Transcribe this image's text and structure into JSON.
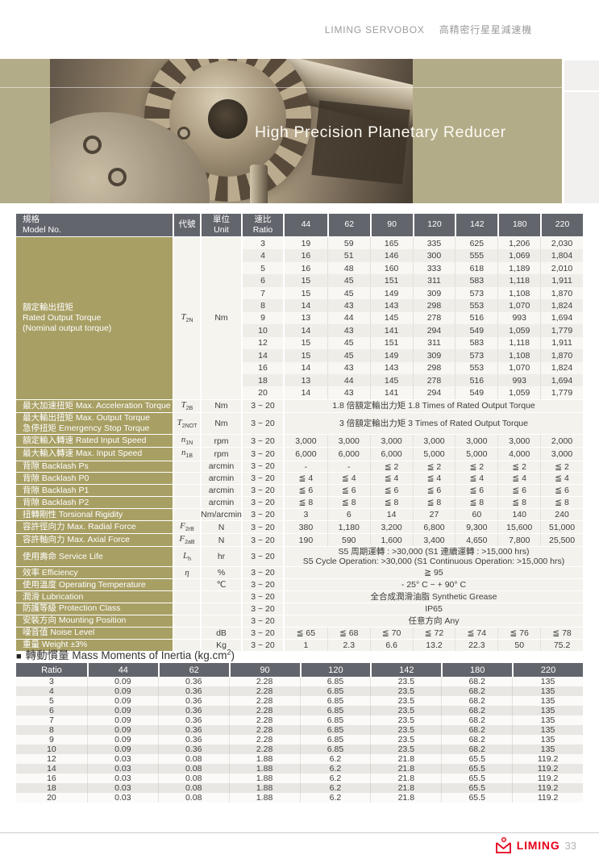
{
  "header": {
    "brand": "LIMING SERVOBOX",
    "subtitle": "高精密行星星減速機"
  },
  "hero": {
    "title": "High Precision Planetary Reducer"
  },
  "colors": {
    "olive_label": "#a89f64",
    "hero_khaki": "#b3ac88",
    "table_header_gray": "#63656d",
    "brand_red": "#e50019"
  },
  "spec_table": {
    "header": {
      "model": [
        "規格",
        "Model No."
      ],
      "code": "代號",
      "unit": [
        "單位",
        "Unit"
      ],
      "ratio": [
        "速比",
        "Ratio"
      ],
      "models": [
        "44",
        "62",
        "90",
        "120",
        "142",
        "180",
        "220"
      ]
    },
    "torque_block": {
      "label_lines": [
        "額定輸出扭矩",
        "Rated Output Torque",
        "(Nominal output torque)"
      ],
      "symbol": {
        "base": "T",
        "sub": "2N"
      },
      "unit": "Nm",
      "rows": [
        {
          "ratio": "3",
          "values": [
            "19",
            "59",
            "165",
            "335",
            "625",
            "1,206",
            "2,030"
          ]
        },
        {
          "ratio": "4",
          "values": [
            "16",
            "51",
            "146",
            "300",
            "555",
            "1,069",
            "1,804"
          ]
        },
        {
          "ratio": "5",
          "values": [
            "16",
            "48",
            "160",
            "333",
            "618",
            "1,189",
            "2,010"
          ]
        },
        {
          "ratio": "6",
          "values": [
            "15",
            "45",
            "151",
            "311",
            "583",
            "1,118",
            "1,911"
          ]
        },
        {
          "ratio": "7",
          "values": [
            "15",
            "45",
            "149",
            "309",
            "573",
            "1,108",
            "1,870"
          ]
        },
        {
          "ratio": "8",
          "values": [
            "14",
            "43",
            "143",
            "298",
            "553",
            "1,070",
            "1,824"
          ]
        },
        {
          "ratio": "9",
          "values": [
            "13",
            "44",
            "145",
            "278",
            "516",
            "993",
            "1,694"
          ]
        },
        {
          "ratio": "10",
          "values": [
            "14",
            "43",
            "141",
            "294",
            "549",
            "1,059",
            "1,779"
          ]
        },
        {
          "ratio": "12",
          "values": [
            "15",
            "45",
            "151",
            "311",
            "583",
            "1,118",
            "1,911"
          ]
        },
        {
          "ratio": "14",
          "values": [
            "15",
            "45",
            "149",
            "309",
            "573",
            "1,108",
            "1,870"
          ]
        },
        {
          "ratio": "16",
          "values": [
            "14",
            "43",
            "143",
            "298",
            "553",
            "1,070",
            "1,824"
          ]
        },
        {
          "ratio": "18",
          "values": [
            "13",
            "44",
            "145",
            "278",
            "516",
            "993",
            "1,694"
          ]
        },
        {
          "ratio": "20",
          "values": [
            "14",
            "43",
            "141",
            "294",
            "549",
            "1,059",
            "1,779"
          ]
        }
      ]
    },
    "rows": [
      {
        "label_lines": [
          "最大加速扭矩  Max. Acceleration Torque"
        ],
        "symbol": {
          "base": "T",
          "sub": "2B"
        },
        "unit": "Nm",
        "ratio": "3 ~ 20",
        "span": "1.8 倍額定輸出力矩  1.8 Times of Rated Output Torque"
      },
      {
        "label_lines": [
          "最大輸出扭矩  Max. Output Torque",
          "急停扭矩  Emergency Stop Torque"
        ],
        "symbol": {
          "base": "T",
          "sub": "2NOT"
        },
        "unit": "Nm",
        "ratio": "3 ~ 20",
        "span": "3 倍額定輸出力矩  3 Times of Rated Output Torque"
      },
      {
        "label_lines": [
          "額定輸入轉速  Rated Input Speed"
        ],
        "symbol": {
          "base": "n",
          "sub": "1N"
        },
        "unit": "rpm",
        "ratio": "3 ~ 20",
        "values": [
          "3,000",
          "3,000",
          "3,000",
          "3,000",
          "3,000",
          "3,000",
          "2,000"
        ]
      },
      {
        "label_lines": [
          "最大輸入轉速  Max. Input Speed"
        ],
        "symbol": {
          "base": "n",
          "sub": "1B"
        },
        "unit": "rpm",
        "ratio": "3 ~ 20",
        "values": [
          "6,000",
          "6,000",
          "6,000",
          "5,000",
          "5,000",
          "4,000",
          "3,000"
        ]
      },
      {
        "label_lines": [
          "背隙  Backlash Ps"
        ],
        "unit": "arcmin",
        "ratio": "3 ~ 20",
        "values": [
          "-",
          "-",
          "≦ 2",
          "≦ 2",
          "≦ 2",
          "≦ 2",
          "≦ 2"
        ]
      },
      {
        "label_lines": [
          "背隙  Backlash P0"
        ],
        "unit": "arcmin",
        "ratio": "3 ~ 20",
        "values": [
          "≦ 4",
          "≦ 4",
          "≦ 4",
          "≦ 4",
          "≦ 4",
          "≦ 4",
          "≦ 4"
        ]
      },
      {
        "label_lines": [
          "背隙  Backlash P1"
        ],
        "unit": "arcmin",
        "ratio": "3 ~ 20",
        "values": [
          "≦ 6",
          "≦ 6",
          "≦ 6",
          "≦ 6",
          "≦ 6",
          "≦ 6",
          "≦ 6"
        ]
      },
      {
        "label_lines": [
          "背隙  Backlash P2"
        ],
        "unit": "arcmin",
        "ratio": "3 ~ 20",
        "values": [
          "≦ 8",
          "≦ 8",
          "≦ 8",
          "≦ 8",
          "≦ 8",
          "≦ 8",
          "≦ 8"
        ]
      },
      {
        "label_lines": [
          "扭轉剛性  Torsional Rigidity"
        ],
        "unit": "Nm/arcmin",
        "ratio": "3 ~ 20",
        "values": [
          "3",
          "6",
          "14",
          "27",
          "60",
          "140",
          "240"
        ]
      },
      {
        "label_lines": [
          "容許徑向力  Max. Radial Force"
        ],
        "symbol": {
          "base": "F",
          "sub": "2rB"
        },
        "unit": "N",
        "ratio": "3 ~ 20",
        "values": [
          "380",
          "1,180",
          "3,200",
          "6,800",
          "9,300",
          "15,600",
          "51,000"
        ]
      },
      {
        "label_lines": [
          "容許軸向力  Max. Axial Force"
        ],
        "symbol": {
          "base": "F",
          "sub": "2aB"
        },
        "unit": "N",
        "ratio": "3 ~ 20",
        "values": [
          "190",
          "590",
          "1,600",
          "3,400",
          "4,650",
          "7,800",
          "25,500"
        ]
      },
      {
        "label_lines": [
          "使用壽命  Service Life"
        ],
        "symbol": {
          "base": "L",
          "sub": "h"
        },
        "unit": "hr",
        "ratio": "3 ~ 20",
        "span_lines": [
          "S5 周期運轉 : >30,000 (S1 連續運轉 : >15,000 hrs)",
          "S5 Cycle Operation: >30,000 (S1 Continuous Operation: >15,000 hrs)"
        ]
      },
      {
        "label_lines": [
          "效率  Efficiency"
        ],
        "symbol": {
          "base": "η",
          "sub": ""
        },
        "unit": "%",
        "ratio": "3 ~ 20",
        "span": "≧ 95"
      },
      {
        "label_lines": [
          "使用溫度  Operating Temperature"
        ],
        "unit": "℃",
        "ratio": "3 ~ 20",
        "span": "- 25° C ~ + 90° C"
      },
      {
        "label_lines": [
          "潤滑  Lubrication"
        ],
        "ratio": "3 ~ 20",
        "span": "全合成潤滑油脂  Synthetic Grease"
      },
      {
        "label_lines": [
          "防護等級  Protection Class"
        ],
        "ratio": "3 ~ 20",
        "span": "IP65"
      },
      {
        "label_lines": [
          "安裝方向  Mounting Position"
        ],
        "ratio": "3 ~ 20",
        "span": "任意方向  Any"
      },
      {
        "label_lines": [
          "噪音值  Noise Level"
        ],
        "unit": "dB",
        "ratio": "3 ~ 20",
        "values": [
          "≦ 65",
          "≦ 68",
          "≦ 70",
          "≦ 72",
          "≦ 74",
          "≦ 76",
          "≦ 78"
        ]
      },
      {
        "label_lines": [
          "重量  Weight  ±3%"
        ],
        "unit": "Kg",
        "ratio": "3 ~ 20",
        "values": [
          "1",
          "2.3",
          "6.6",
          "13.2",
          "22.3",
          "50",
          "75.2"
        ]
      }
    ]
  },
  "inertia_table": {
    "bullet": "■",
    "title_prefix": "轉動慣量 Mass Moments of Inertia (kg.cm",
    "title_sup": "2",
    "title_suffix": ")",
    "headers": [
      "Ratio",
      "44",
      "62",
      "90",
      "120",
      "142",
      "180",
      "220"
    ],
    "rows": [
      [
        "3",
        "0.09",
        "0.36",
        "2.28",
        "6.85",
        "23.5",
        "68.2",
        "135"
      ],
      [
        "4",
        "0.09",
        "0.36",
        "2.28",
        "6.85",
        "23.5",
        "68.2",
        "135"
      ],
      [
        "5",
        "0.09",
        "0.36",
        "2.28",
        "6.85",
        "23.5",
        "68.2",
        "135"
      ],
      [
        "6",
        "0.09",
        "0.36",
        "2.28",
        "6.85",
        "23.5",
        "68.2",
        "135"
      ],
      [
        "7",
        "0.09",
        "0.36",
        "2.28",
        "6.85",
        "23.5",
        "68.2",
        "135"
      ],
      [
        "8",
        "0.09",
        "0.36",
        "2.28",
        "6.85",
        "23.5",
        "68.2",
        "135"
      ],
      [
        "9",
        "0.09",
        "0.36",
        "2.28",
        "6.85",
        "23.5",
        "68.2",
        "135"
      ],
      [
        "10",
        "0.09",
        "0.36",
        "2.28",
        "6.85",
        "23.5",
        "68.2",
        "135"
      ],
      [
        "12",
        "0.03",
        "0.08",
        "1.88",
        "6.2",
        "21.8",
        "65.5",
        "119.2"
      ],
      [
        "14",
        "0.03",
        "0.08",
        "1.88",
        "6.2",
        "21.8",
        "65.5",
        "119.2"
      ],
      [
        "16",
        "0.03",
        "0.08",
        "1.88",
        "6.2",
        "21.8",
        "65.5",
        "119.2"
      ],
      [
        "18",
        "0.03",
        "0.08",
        "1.88",
        "6.2",
        "21.8",
        "65.5",
        "119.2"
      ],
      [
        "20",
        "0.03",
        "0.08",
        "1.88",
        "6.2",
        "21.8",
        "65.5",
        "119.2"
      ]
    ]
  },
  "footer": {
    "brand": "LIMING",
    "page_number": "33"
  }
}
